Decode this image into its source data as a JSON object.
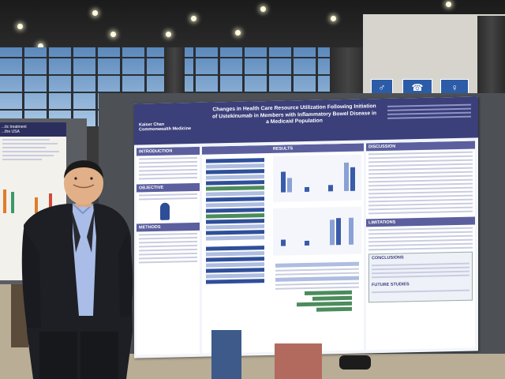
{
  "poster": {
    "logo_1": "Kaiser Chan",
    "logo_2": "Commonwealth Medicine",
    "title": "Changes in Health Care Resource Utilization Following Initiation of Ustekinumab in Members with Inflammatory Bowel Disease in a Medicaid Population",
    "sections": {
      "introduction": "INTRODUCTION",
      "results": "RESULTS",
      "discussion": "DISCUSSION",
      "objective": "OBJECTIVE",
      "methods": "METHODS",
      "limitations": "LIMITATIONS",
      "conclusions": "CONCLUSIONS",
      "future_studies": "FUTURE STUDIES"
    }
  },
  "left_poster": {
    "title_1": "...tic treatment",
    "title_2": "...the USA"
  },
  "colors": {
    "poster_header": "#3b3f7a",
    "section_bar": "#5b5f9e",
    "chart_bar": "#3a5ba8",
    "jacket": "#1e1f24",
    "shirt": "#a9bde8"
  }
}
